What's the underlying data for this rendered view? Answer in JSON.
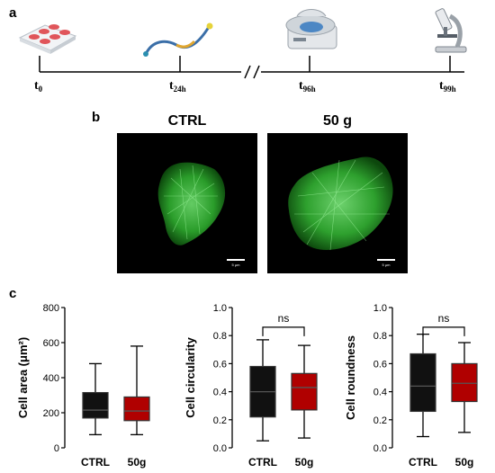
{
  "panels": {
    "a": "a",
    "b": "b",
    "c": "c"
  },
  "timeline": {
    "points": [
      {
        "label": "t",
        "sub": "0"
      },
      {
        "label": "t",
        "sub": "24h"
      },
      {
        "label": "t",
        "sub": "96h"
      },
      {
        "label": "t",
        "sub": "99h"
      }
    ],
    "break_mark": "/ /",
    "icons": [
      "cell-culture-plate-icon",
      "catheter-icon",
      "centrifuge-icon",
      "microscope-icon"
    ]
  },
  "micrographs": {
    "left_title": "CTRL",
    "right_title": "50 g",
    "scale_text": "5 μm",
    "stain_color": "#3ec43e"
  },
  "colors": {
    "ctrl": "#111111",
    "treated": "#b00000",
    "whisker": "#000000"
  },
  "chart_data": [
    {
      "type": "box",
      "ylabel": "Cell area (μm²)",
      "ylim": [
        0,
        800
      ],
      "yticks": [
        "0",
        "200",
        "400",
        "600",
        "800"
      ],
      "categories": [
        "CTRL",
        "50g"
      ],
      "boxes": [
        {
          "name": "CTRL",
          "min": 75,
          "q1": 170,
          "median": 215,
          "q3": 315,
          "max": 480
        },
        {
          "name": "50g",
          "min": 75,
          "q1": 155,
          "median": 210,
          "q3": 290,
          "max": 580
        }
      ],
      "annotation": ""
    },
    {
      "type": "box",
      "ylabel": "Cell circularity",
      "ylim": [
        0,
        1.0
      ],
      "yticks": [
        "0.0",
        "0.2",
        "0.4",
        "0.6",
        "0.8",
        "1.0"
      ],
      "categories": [
        "CTRL",
        "50g"
      ],
      "boxes": [
        {
          "name": "CTRL",
          "min": 0.05,
          "q1": 0.22,
          "median": 0.4,
          "q3": 0.58,
          "max": 0.77
        },
        {
          "name": "50g",
          "min": 0.07,
          "q1": 0.27,
          "median": 0.43,
          "q3": 0.53,
          "max": 0.73
        }
      ],
      "annotation": "ns"
    },
    {
      "type": "box",
      "ylabel": "Cell roundness",
      "ylim": [
        0,
        1.0
      ],
      "yticks": [
        "0.0",
        "0.2",
        "0.4",
        "0.6",
        "0.8",
        "1.0"
      ],
      "categories": [
        "CTRL",
        "50g"
      ],
      "boxes": [
        {
          "name": "CTRL",
          "min": 0.08,
          "q1": 0.26,
          "median": 0.44,
          "q3": 0.67,
          "max": 0.81
        },
        {
          "name": "50g",
          "min": 0.11,
          "q1": 0.33,
          "median": 0.46,
          "q3": 0.6,
          "max": 0.75
        }
      ],
      "annotation": "ns"
    }
  ]
}
